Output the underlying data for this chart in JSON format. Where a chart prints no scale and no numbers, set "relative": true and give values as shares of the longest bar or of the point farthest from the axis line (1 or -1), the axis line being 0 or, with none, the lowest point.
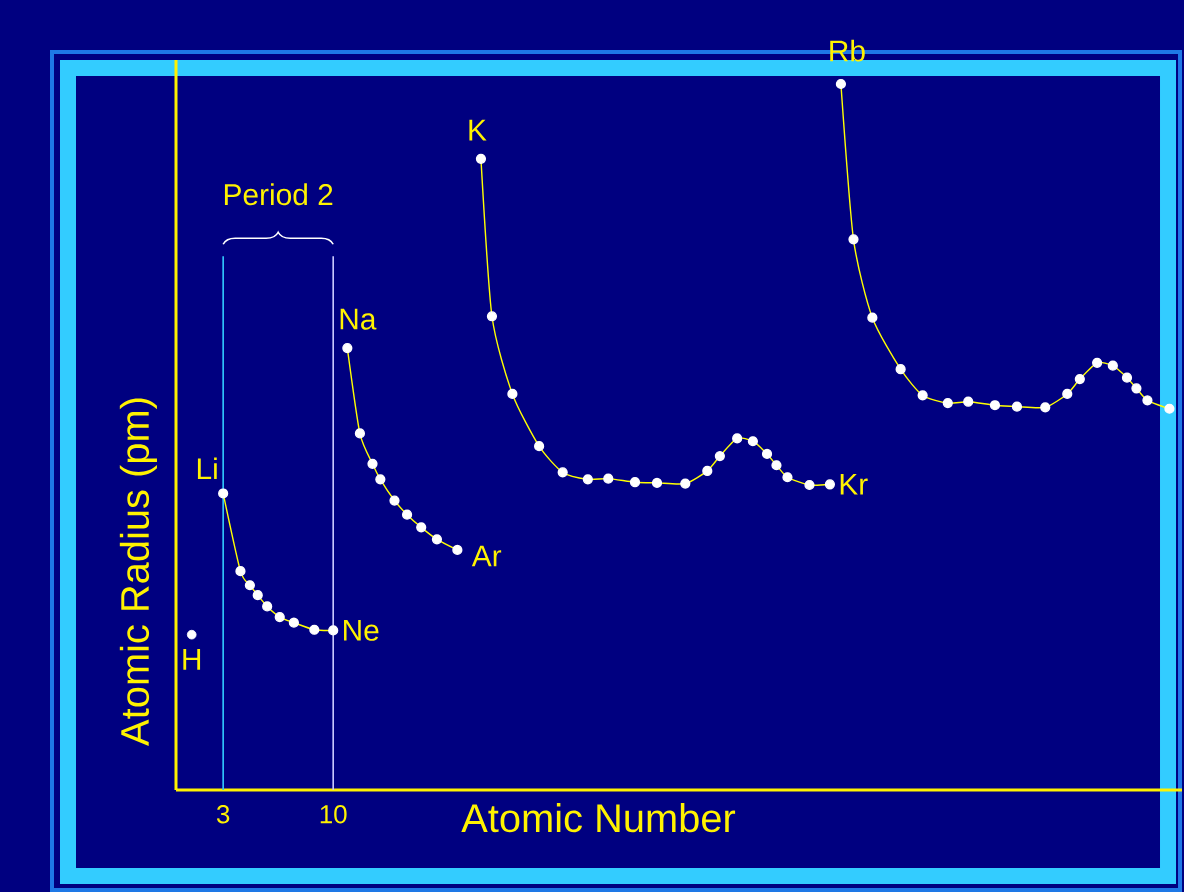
{
  "chart_data": {
    "type": "line",
    "relative": true,
    "xlabel": "Atomic Number",
    "ylabel": "Atomic Radius (pm)",
    "xlim": [
      0,
      64
    ],
    "xticks": [
      3,
      10
    ],
    "tick_labels": "x",
    "marker": "circle",
    "line_style": "solid",
    "series": [
      {
        "type": "scatter",
        "color": "#ffffff",
        "x": [
          1.0
        ],
        "values": [
          0.22
        ]
      },
      {
        "color": "#ffff00",
        "x": [
          3.0,
          4.1,
          4.7,
          5.2,
          5.8,
          6.6,
          7.5,
          8.8,
          10.0
        ],
        "values": [
          0.42,
          0.31,
          0.29,
          0.276,
          0.26,
          0.245,
          0.237,
          0.227,
          0.226
        ]
      },
      {
        "color": "#ffff00",
        "x": [
          10.9,
          11.7,
          12.5,
          13.0,
          13.9,
          14.7,
          15.6,
          16.6,
          17.9
        ],
        "values": [
          0.626,
          0.505,
          0.462,
          0.44,
          0.41,
          0.39,
          0.372,
          0.355,
          0.34
        ]
      },
      {
        "color": "#ffff00",
        "x": [
          19.4,
          20.1,
          21.4,
          23.1,
          24.6,
          26.2,
          27.5,
          29.2,
          30.6,
          32.4,
          33.8,
          34.6,
          35.7,
          36.7,
          37.6,
          38.2,
          38.9,
          40.3,
          41.6
        ],
        "values": [
          0.894,
          0.671,
          0.561,
          0.487,
          0.45,
          0.44,
          0.441,
          0.436,
          0.435,
          0.434,
          0.452,
          0.473,
          0.498,
          0.494,
          0.476,
          0.46,
          0.443,
          0.432,
          0.433
        ]
      },
      {
        "color": "#ffff00",
        "x": [
          42.3,
          43.1,
          44.3,
          46.1,
          47.5,
          49.1,
          50.4,
          52.1,
          53.5,
          55.3,
          56.7,
          57.5,
          58.6,
          59.6,
          60.5,
          61.1,
          61.8,
          63.2
        ],
        "values": [
          1.0,
          0.78,
          0.669,
          0.596,
          0.559,
          0.548,
          0.55,
          0.545,
          0.543,
          0.542,
          0.561,
          0.582,
          0.605,
          0.601,
          0.584,
          0.569,
          0.552,
          0.54
        ]
      }
    ],
    "ref_lines": [
      {
        "axis": "x",
        "value": 3,
        "color": "#33ccff"
      },
      {
        "axis": "x",
        "value": 10,
        "color": "#ccccff"
      }
    ],
    "annotations": [
      {
        "text": "H",
        "x": 1.0,
        "y": 0.22
      },
      {
        "text": "Li",
        "x": 3.0,
        "y": 0.42
      },
      {
        "text": "Ne",
        "x": 10.0,
        "y": 0.226
      },
      {
        "text": "Na",
        "x": 10.9,
        "y": 0.626
      },
      {
        "text": "Ar",
        "x": 17.9,
        "y": 0.34
      },
      {
        "text": "K",
        "x": 19.4,
        "y": 0.894
      },
      {
        "text": "Kr",
        "x": 41.6,
        "y": 0.433
      },
      {
        "text": "Rb",
        "x": 42.3,
        "y": 1.0
      },
      "Period 2"
    ]
  }
}
